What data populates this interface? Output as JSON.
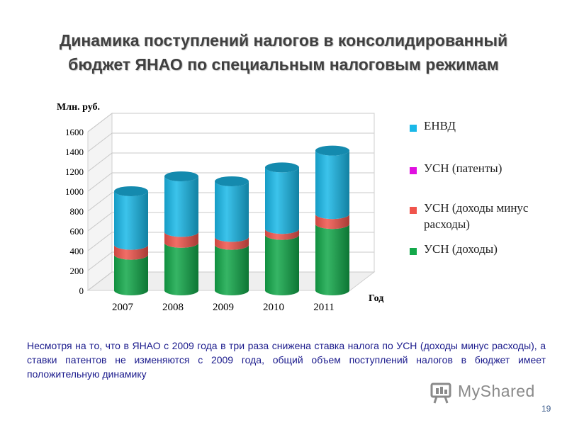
{
  "slide": {
    "title_line1": "Динамика поступлений налогов в консолидированный",
    "title_line2": "бюджет ЯНАО по специальным налоговым режимам",
    "note": "Несмотря на то, что в ЯНАО с 2009 года в три раза снижена ставка налога по УСН (доходы минус расходы), а ставки патентов не изменяются с 2009 года, общий объем поступлений налогов в бюджет имеет положительную динамику",
    "page_number": "19",
    "watermark_text": "MyShared"
  },
  "chart_data": {
    "type": "bar",
    "stacked": true,
    "style": "3d-cylinder",
    "title": "",
    "ylabel": "Млн. руб.",
    "xlabel": "Год",
    "ylim": [
      0,
      1600
    ],
    "yticks": [
      0,
      200,
      400,
      600,
      800,
      1000,
      1200,
      1400,
      1600
    ],
    "grid": true,
    "legend_position": "right",
    "categories": [
      "2007",
      "2008",
      "2009",
      "2010",
      "2011"
    ],
    "series": [
      {
        "name": "УСН (доходы)",
        "color": "#13a84a",
        "values": [
          360,
          480,
          460,
          560,
          670
        ]
      },
      {
        "name": "УСН (доходы минус расходы)",
        "color": "#f0544c",
        "values": [
          100,
          110,
          80,
          60,
          100
        ]
      },
      {
        "name": "УСН (патенты)",
        "color": "#e010e0",
        "values": [
          0,
          0,
          0,
          0,
          0
        ]
      },
      {
        "name": "ЕНВД",
        "color": "#1ab8e8",
        "values": [
          540,
          560,
          560,
          620,
          640
        ]
      }
    ],
    "legend_order": [
      "ЕНВД",
      "УСН (патенты)",
      "УСН (доходы минус расходы)",
      "УСН (доходы)"
    ]
  }
}
